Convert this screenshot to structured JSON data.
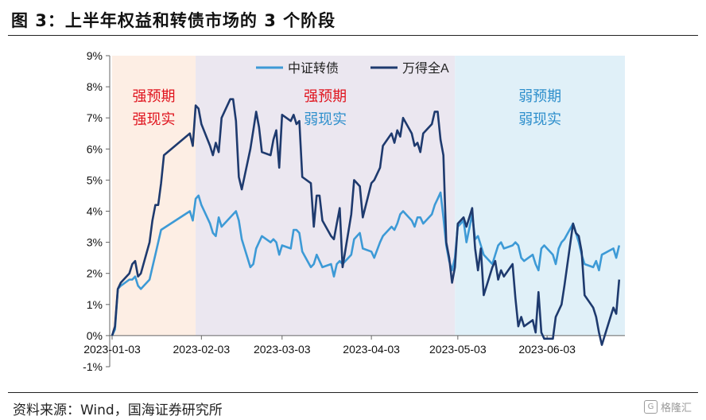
{
  "figure": {
    "title": "图 3：上半年权益和转债市场的 3 个阶段",
    "source": "资料来源：Wind，国海证券研究所",
    "watermark": "格隆汇"
  },
  "chart_data": {
    "type": "line",
    "x_ticks": [
      "2023-01-03",
      "2023-02-03",
      "2023-03-03",
      "2023-04-03",
      "2023-05-03",
      "2023-06-03"
    ],
    "y_ticks": [
      "9%",
      "8%",
      "7%",
      "6%",
      "5%",
      "4%",
      "3%",
      "2%",
      "1%",
      "0%",
      "-1%"
    ],
    "ylim": [
      -1,
      9
    ],
    "xlim": [
      "2023-01-03",
      "2023-06-30"
    ],
    "grid": false,
    "legend_position": "top-center",
    "phases": [
      {
        "start": "2023-01-03",
        "end": "2023-02-01",
        "label_line1": "强预期",
        "label_line2": "强现实",
        "fill": "#fdeee4",
        "color1": "#e0141e",
        "color2": "#e0141e"
      },
      {
        "start": "2023-02-01",
        "end": "2023-05-02",
        "label_line1": "强预期",
        "label_line2": "弱现实",
        "fill": "#ebe7f0",
        "color1": "#e0141e",
        "color2": "#2e8fcc"
      },
      {
        "start": "2023-05-02",
        "end": "2023-06-30",
        "label_line1": "弱预期",
        "label_line2": "弱现实",
        "fill": "#e0f0f8",
        "color1": "#2e8fcc",
        "color2": "#2e8fcc"
      }
    ],
    "series": [
      {
        "name": "中证转债",
        "color": "#3d9ad6",
        "points": [
          [
            "2023-01-03",
            0.0
          ],
          [
            "2023-01-04",
            0.2
          ],
          [
            "2023-01-05",
            1.5
          ],
          [
            "2023-01-06",
            1.6
          ],
          [
            "2023-01-09",
            1.8
          ],
          [
            "2023-01-10",
            1.8
          ],
          [
            "2023-01-11",
            1.9
          ],
          [
            "2023-01-12",
            1.6
          ],
          [
            "2023-01-13",
            1.5
          ],
          [
            "2023-01-16",
            1.8
          ],
          [
            "2023-01-17",
            2.2
          ],
          [
            "2023-01-18",
            2.6
          ],
          [
            "2023-01-19",
            3.0
          ],
          [
            "2023-01-20",
            3.4
          ],
          [
            "2023-01-30",
            4.0
          ],
          [
            "2023-01-31",
            3.7
          ],
          [
            "2023-02-01",
            4.4
          ],
          [
            "2023-02-02",
            4.5
          ],
          [
            "2023-02-03",
            4.2
          ],
          [
            "2023-02-06",
            3.6
          ],
          [
            "2023-02-07",
            3.3
          ],
          [
            "2023-02-08",
            3.2
          ],
          [
            "2023-02-09",
            3.8
          ],
          [
            "2023-02-10",
            3.5
          ],
          [
            "2023-02-13",
            3.8
          ],
          [
            "2023-02-14",
            3.9
          ],
          [
            "2023-02-15",
            4.0
          ],
          [
            "2023-02-16",
            3.7
          ],
          [
            "2023-02-17",
            3.1
          ],
          [
            "2023-02-20",
            2.2
          ],
          [
            "2023-02-21",
            2.3
          ],
          [
            "2023-02-22",
            2.8
          ],
          [
            "2023-02-23",
            3.0
          ],
          [
            "2023-02-24",
            3.2
          ],
          [
            "2023-02-27",
            3.0
          ],
          [
            "2023-02-28",
            3.1
          ],
          [
            "2023-03-01",
            3.0
          ],
          [
            "2023-03-02",
            2.6
          ],
          [
            "2023-03-03",
            2.9
          ],
          [
            "2023-03-06",
            2.8
          ],
          [
            "2023-03-07",
            3.4
          ],
          [
            "2023-03-08",
            3.4
          ],
          [
            "2023-03-09",
            3.3
          ],
          [
            "2023-03-10",
            2.7
          ],
          [
            "2023-03-13",
            2.2
          ],
          [
            "2023-03-14",
            2.3
          ],
          [
            "2023-03-15",
            2.6
          ],
          [
            "2023-03-16",
            2.4
          ],
          [
            "2023-03-17",
            2.2
          ],
          [
            "2023-03-20",
            2.3
          ],
          [
            "2023-03-21",
            1.9
          ],
          [
            "2023-03-22",
            2.3
          ],
          [
            "2023-03-23",
            2.4
          ],
          [
            "2023-03-24",
            2.3
          ],
          [
            "2023-03-27",
            2.6
          ],
          [
            "2023-03-28",
            3.1
          ],
          [
            "2023-03-29",
            3.2
          ],
          [
            "2023-03-30",
            3.3
          ],
          [
            "2023-03-31",
            2.8
          ],
          [
            "2023-04-03",
            2.7
          ],
          [
            "2023-04-04",
            2.5
          ],
          [
            "2023-04-06",
            3.0
          ],
          [
            "2023-04-07",
            3.2
          ],
          [
            "2023-04-10",
            3.5
          ],
          [
            "2023-04-11",
            3.4
          ],
          [
            "2023-04-12",
            3.6
          ],
          [
            "2023-04-13",
            3.9
          ],
          [
            "2023-04-14",
            4.0
          ],
          [
            "2023-04-17",
            3.7
          ],
          [
            "2023-04-18",
            3.5
          ],
          [
            "2023-04-19",
            3.8
          ],
          [
            "2023-04-20",
            3.8
          ],
          [
            "2023-04-21",
            3.6
          ],
          [
            "2023-04-24",
            3.9
          ],
          [
            "2023-04-25",
            4.2
          ],
          [
            "2023-04-26",
            4.4
          ],
          [
            "2023-04-27",
            4.6
          ],
          [
            "2023-04-28",
            3.8
          ],
          [
            "2023-04-29",
            2.9
          ],
          [
            "2023-04-30",
            2.4
          ],
          [
            "2023-05-01",
            2.1
          ],
          [
            "2023-05-02",
            2.5
          ],
          [
            "2023-05-03",
            3.5
          ],
          [
            "2023-05-04",
            3.6
          ],
          [
            "2023-05-05",
            3.7
          ],
          [
            "2023-05-06",
            3.0
          ],
          [
            "2023-05-08",
            3.9
          ],
          [
            "2023-05-09",
            3.1
          ],
          [
            "2023-05-10",
            3.2
          ],
          [
            "2023-05-11",
            2.9
          ],
          [
            "2023-05-12",
            2.6
          ],
          [
            "2023-05-15",
            2.3
          ],
          [
            "2023-05-16",
            2.6
          ],
          [
            "2023-05-17",
            2.9
          ],
          [
            "2023-05-18",
            3.0
          ],
          [
            "2023-05-19",
            2.8
          ],
          [
            "2023-05-22",
            2.9
          ],
          [
            "2023-05-23",
            3.0
          ],
          [
            "2023-05-24",
            2.9
          ],
          [
            "2023-05-25",
            2.5
          ],
          [
            "2023-05-26",
            2.4
          ],
          [
            "2023-05-29",
            2.6
          ],
          [
            "2023-05-30",
            2.3
          ],
          [
            "2023-05-31",
            2.1
          ],
          [
            "2023-06-01",
            2.8
          ],
          [
            "2023-06-02",
            2.9
          ],
          [
            "2023-06-05",
            2.6
          ],
          [
            "2023-06-06",
            2.3
          ],
          [
            "2023-06-07",
            2.8
          ],
          [
            "2023-06-08",
            3.0
          ],
          [
            "2023-06-09",
            3.1
          ],
          [
            "2023-06-12",
            3.6
          ],
          [
            "2023-06-13",
            3.3
          ],
          [
            "2023-06-14",
            3.0
          ],
          [
            "2023-06-15",
            2.6
          ],
          [
            "2023-06-16",
            2.3
          ],
          [
            "2023-06-19",
            2.2
          ],
          [
            "2023-06-20",
            2.4
          ],
          [
            "2023-06-21",
            2.1
          ],
          [
            "2023-06-22",
            2.6
          ],
          [
            "2023-06-26",
            2.8
          ],
          [
            "2023-06-27",
            2.5
          ],
          [
            "2023-06-28",
            2.9
          ]
        ]
      },
      {
        "name": "万得全A",
        "color": "#1e3a6e",
        "points": [
          [
            "2023-01-03",
            0.0
          ],
          [
            "2023-01-04",
            0.3
          ],
          [
            "2023-01-05",
            1.5
          ],
          [
            "2023-01-06",
            1.7
          ],
          [
            "2023-01-09",
            2.0
          ],
          [
            "2023-01-10",
            2.3
          ],
          [
            "2023-01-11",
            2.4
          ],
          [
            "2023-01-12",
            1.9
          ],
          [
            "2023-01-13",
            2.0
          ],
          [
            "2023-01-16",
            3.0
          ],
          [
            "2023-01-17",
            3.7
          ],
          [
            "2023-01-18",
            4.2
          ],
          [
            "2023-01-19",
            4.2
          ],
          [
            "2023-01-20",
            4.9
          ],
          [
            "2023-01-21",
            5.8
          ],
          [
            "2023-01-30",
            6.5
          ],
          [
            "2023-01-31",
            6.1
          ],
          [
            "2023-02-01",
            7.4
          ],
          [
            "2023-02-02",
            7.3
          ],
          [
            "2023-02-03",
            6.8
          ],
          [
            "2023-02-06",
            6.1
          ],
          [
            "2023-02-07",
            5.8
          ],
          [
            "2023-02-08",
            6.2
          ],
          [
            "2023-02-09",
            5.9
          ],
          [
            "2023-02-10",
            7.0
          ],
          [
            "2023-02-13",
            7.6
          ],
          [
            "2023-02-14",
            7.6
          ],
          [
            "2023-02-15",
            6.9
          ],
          [
            "2023-02-16",
            5.1
          ],
          [
            "2023-02-17",
            4.7
          ],
          [
            "2023-02-20",
            6.0
          ],
          [
            "2023-02-21",
            6.6
          ],
          [
            "2023-02-22",
            7.2
          ],
          [
            "2023-02-23",
            6.7
          ],
          [
            "2023-02-24",
            5.9
          ],
          [
            "2023-02-27",
            5.8
          ],
          [
            "2023-02-28",
            6.3
          ],
          [
            "2023-03-01",
            6.6
          ],
          [
            "2023-03-02",
            5.4
          ],
          [
            "2023-03-03",
            7.1
          ],
          [
            "2023-03-06",
            6.9
          ],
          [
            "2023-03-07",
            7.1
          ],
          [
            "2023-03-08",
            6.8
          ],
          [
            "2023-03-09",
            6.9
          ],
          [
            "2023-03-10",
            5.1
          ],
          [
            "2023-03-13",
            4.9
          ],
          [
            "2023-03-14",
            3.5
          ],
          [
            "2023-03-15",
            4.5
          ],
          [
            "2023-03-16",
            4.5
          ],
          [
            "2023-03-17",
            3.7
          ],
          [
            "2023-03-20",
            3.2
          ],
          [
            "2023-03-21",
            3.1
          ],
          [
            "2023-03-22",
            3.6
          ],
          [
            "2023-03-23",
            4.1
          ],
          [
            "2023-03-24",
            2.2
          ],
          [
            "2023-03-27",
            3.9
          ],
          [
            "2023-03-28",
            5.0
          ],
          [
            "2023-03-29",
            4.9
          ],
          [
            "2023-03-30",
            4.8
          ],
          [
            "2023-03-31",
            3.8
          ],
          [
            "2023-04-03",
            4.9
          ],
          [
            "2023-04-04",
            5.0
          ],
          [
            "2023-04-06",
            5.4
          ],
          [
            "2023-04-07",
            6.1
          ],
          [
            "2023-04-10",
            6.5
          ],
          [
            "2023-04-11",
            6.2
          ],
          [
            "2023-04-12",
            6.6
          ],
          [
            "2023-04-13",
            6.4
          ],
          [
            "2023-04-14",
            7.0
          ],
          [
            "2023-04-17",
            6.5
          ],
          [
            "2023-04-18",
            6.1
          ],
          [
            "2023-04-19",
            6.2
          ],
          [
            "2023-04-20",
            5.9
          ],
          [
            "2023-04-21",
            6.5
          ],
          [
            "2023-04-24",
            6.8
          ],
          [
            "2023-04-25",
            7.2
          ],
          [
            "2023-04-26",
            7.2
          ],
          [
            "2023-04-27",
            6.3
          ],
          [
            "2023-04-28",
            5.8
          ],
          [
            "2023-04-29",
            3.0
          ],
          [
            "2023-04-30",
            2.5
          ],
          [
            "2023-05-01",
            1.7
          ],
          [
            "2023-05-02",
            2.2
          ],
          [
            "2023-05-03",
            3.6
          ],
          [
            "2023-05-04",
            3.7
          ],
          [
            "2023-05-05",
            3.8
          ],
          [
            "2023-05-06",
            3.5
          ],
          [
            "2023-05-08",
            4.1
          ],
          [
            "2023-05-09",
            2.8
          ],
          [
            "2023-05-10",
            2.1
          ],
          [
            "2023-05-11",
            2.8
          ],
          [
            "2023-05-12",
            1.3
          ],
          [
            "2023-05-15",
            2.2
          ],
          [
            "2023-05-16",
            2.4
          ],
          [
            "2023-05-17",
            1.8
          ],
          [
            "2023-05-18",
            2.1
          ],
          [
            "2023-05-19",
            1.9
          ],
          [
            "2023-05-22",
            2.3
          ],
          [
            "2023-05-23",
            1.2
          ],
          [
            "2023-05-24",
            0.3
          ],
          [
            "2023-05-25",
            0.6
          ],
          [
            "2023-05-26",
            0.3
          ],
          [
            "2023-05-29",
            0.5
          ],
          [
            "2023-05-30",
            0.1
          ],
          [
            "2023-05-31",
            1.4
          ],
          [
            "2023-06-01",
            0.1
          ],
          [
            "2023-06-02",
            -0.1
          ],
          [
            "2023-06-05",
            -0.1
          ],
          [
            "2023-06-06",
            0.6
          ],
          [
            "2023-06-07",
            0.8
          ],
          [
            "2023-06-08",
            1.0
          ],
          [
            "2023-06-09",
            1.6
          ],
          [
            "2023-06-12",
            3.6
          ],
          [
            "2023-06-13",
            3.3
          ],
          [
            "2023-06-14",
            3.2
          ],
          [
            "2023-06-15",
            2.7
          ],
          [
            "2023-06-16",
            1.3
          ],
          [
            "2023-06-19",
            0.9
          ],
          [
            "2023-06-20",
            0.6
          ],
          [
            "2023-06-21",
            0.1
          ],
          [
            "2023-06-22",
            -0.3
          ],
          [
            "2023-06-26",
            0.9
          ],
          [
            "2023-06-27",
            0.7
          ],
          [
            "2023-06-28",
            1.8
          ]
        ]
      }
    ]
  }
}
